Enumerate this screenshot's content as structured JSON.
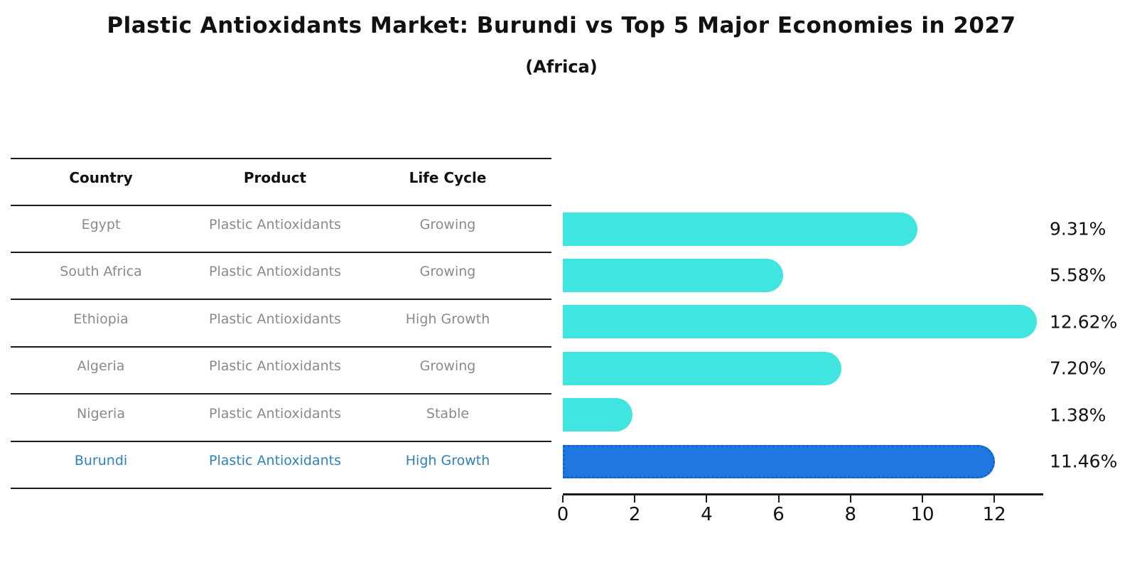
{
  "title": "Plastic Antioxidants Market: Burundi vs Top 5 Major Economies in 2027",
  "subtitle": "(Africa)",
  "table": {
    "headers": [
      "Country",
      "Product",
      "Life Cycle"
    ],
    "rows": [
      {
        "country": "Egypt",
        "product": "Plastic Antioxidants",
        "life_cycle": "Growing",
        "highlight": false
      },
      {
        "country": "South Africa",
        "product": "Plastic Antioxidants",
        "life_cycle": "Growing",
        "highlight": false
      },
      {
        "country": "Ethiopia",
        "product": "Plastic Antioxidants",
        "life_cycle": "High Growth",
        "highlight": false
      },
      {
        "country": "Algeria",
        "product": "Plastic Antioxidants",
        "life_cycle": "Growing",
        "highlight": false
      },
      {
        "country": "Nigeria",
        "product": "Plastic Antioxidants",
        "life_cycle": "Stable",
        "highlight": false
      },
      {
        "country": "Burundi",
        "product": "Plastic Antioxidants",
        "life_cycle": "High Growth",
        "highlight": true
      }
    ]
  },
  "chart_data": {
    "type": "bar",
    "orientation": "horizontal",
    "categories": [
      "Egypt",
      "South Africa",
      "Ethiopia",
      "Algeria",
      "Nigeria",
      "Burundi"
    ],
    "values": [
      9.31,
      5.58,
      12.62,
      7.2,
      1.38,
      11.46
    ],
    "value_labels": [
      "9.31%",
      "5.58%",
      "12.62%",
      "7.20%",
      "1.38%",
      "11.46%"
    ],
    "xlim": [
      0,
      13.36
    ],
    "xticks": [
      0,
      2,
      4,
      6,
      8,
      10,
      12
    ],
    "xtick_labels": [
      "0",
      "2",
      "4",
      "6",
      "8",
      "10",
      "12"
    ],
    "grid": false,
    "legend": null,
    "highlight_category": "Burundi"
  },
  "colors": {
    "bar_default": "#40E5E0",
    "bar_highlight": "#1E78E0",
    "bar_highlight_border": "#1663CE",
    "row_text": "#8A8A8A",
    "highlight_text": "#2E80C0",
    "header_text": "#111111",
    "axis_text": "#111111",
    "line": "#1A1A1A"
  }
}
